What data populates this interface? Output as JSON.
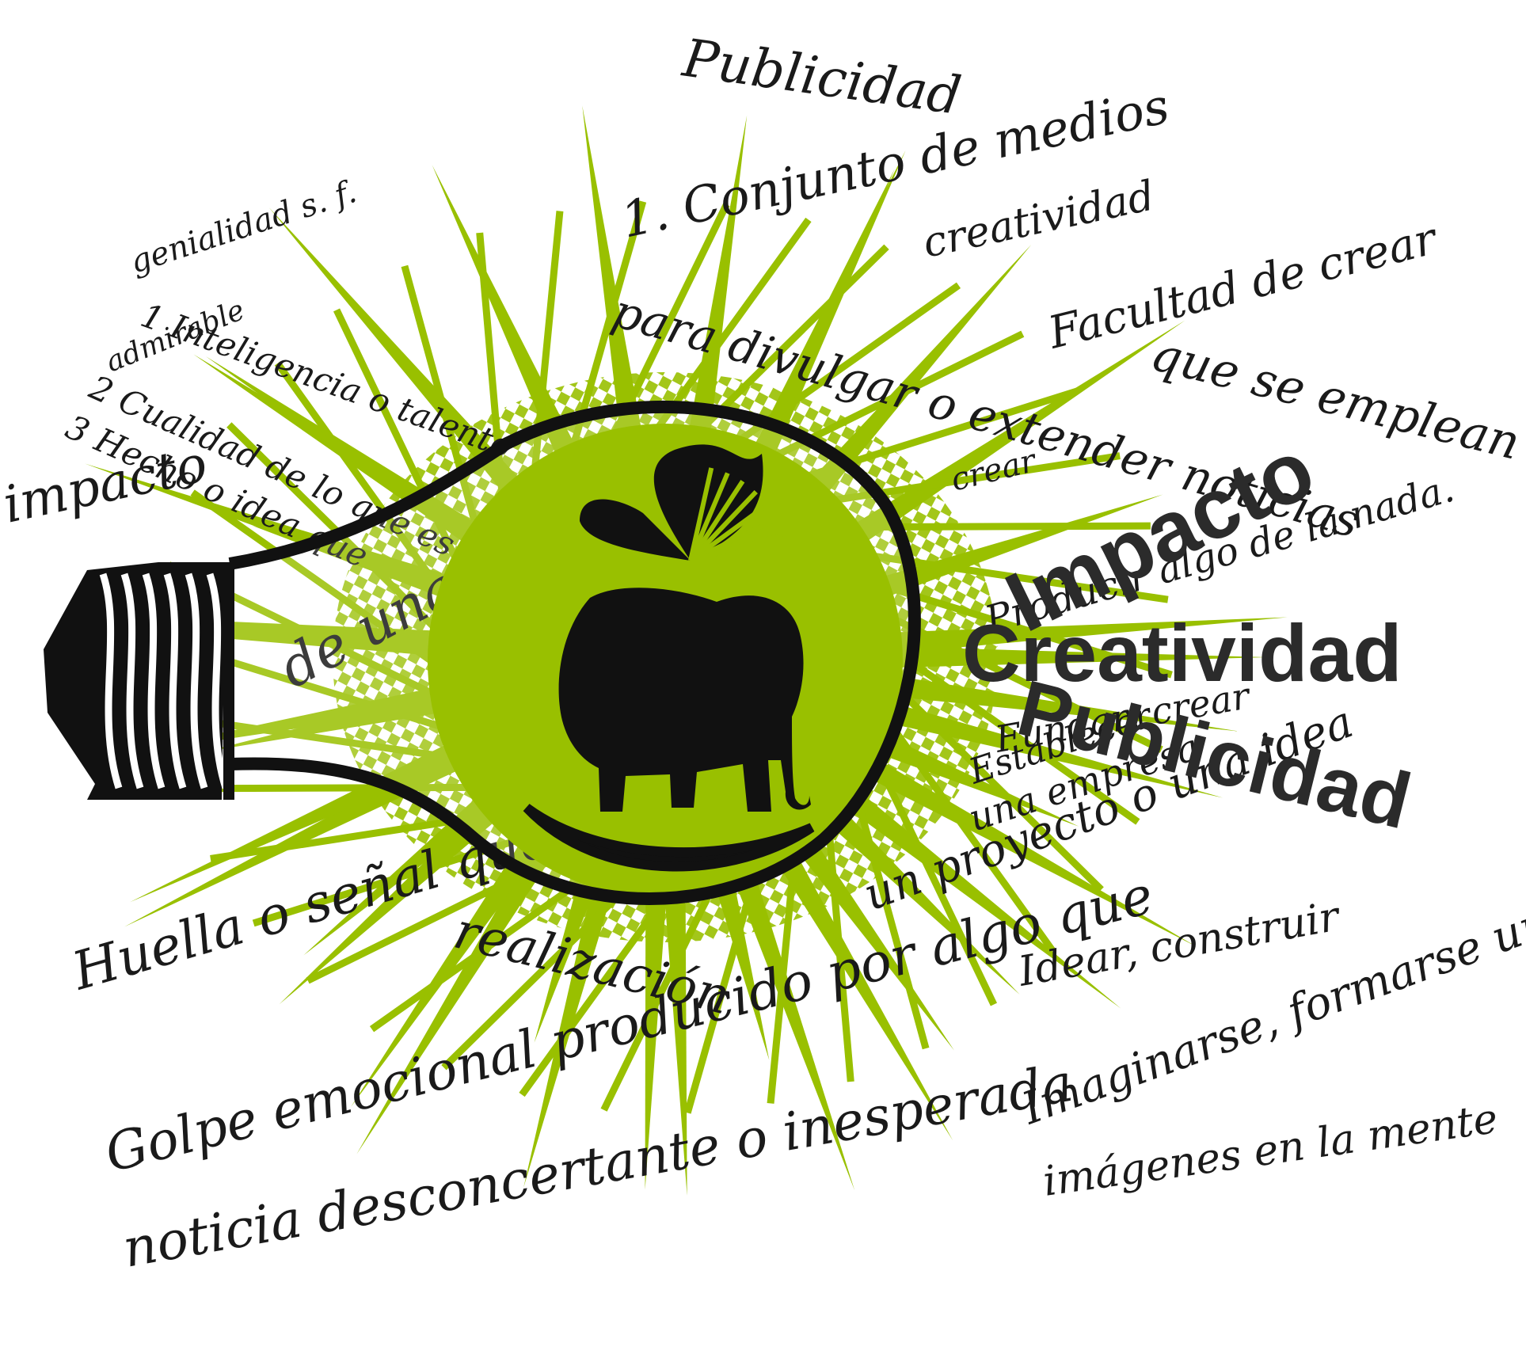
{
  "colors": {
    "accent": "#99c000",
    "ink": "#111111",
    "wordmark": "#2b2b2b",
    "background": "#ffffff"
  },
  "icons": [
    "lightbulb-icon",
    "elephant-icon",
    "butterfly-icon"
  ],
  "wordmark": {
    "impacto": "Impacto",
    "creatividad": "Creatividad",
    "publicidad": "Publicidad"
  },
  "handwriting": {
    "publicidad_title": "Publicidad",
    "conjunto": "1. Conjunto de medios",
    "creatividad_title": "creatividad",
    "facultad": "Facultad de crear",
    "se_emplean": "que se emplean",
    "para_divulgar": "para divulgar o extender noticias",
    "crear": "crear",
    "algo_nada": "Producir algo de la nada.",
    "genialidad": "genialidad s. f.",
    "inteligencia": "1 Inteligencia o talento",
    "admirable": "admirable",
    "cualidad": "2 Cualidad de lo que es",
    "hecho": "3 Hecho o idea que",
    "impacto_word": "impacto",
    "de_una": "de una",
    "fundar": "Fundar: crear",
    "establecer": "Establecer",
    "una_empresa": "una empresa",
    "un_proyecto": "un proyecto o una idea",
    "idear": "Idear, construir",
    "huella": "Huella o señal que deja",
    "realizacion": "realización",
    "golpe": "Golpe emocional producido por algo que",
    "noticia": "noticia desconcertante o inesperada",
    "imaginarse": "Imaginarse, formarse una",
    "imagenes": "imágenes en la mente"
  }
}
